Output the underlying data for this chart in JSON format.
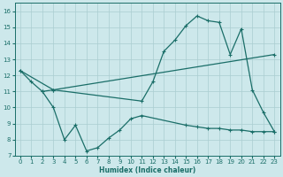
{
  "xlabel": "Humidex (Indice chaleur)",
  "xlim": [
    -0.5,
    23.5
  ],
  "ylim": [
    7,
    16.5
  ],
  "yticks": [
    7,
    8,
    9,
    10,
    11,
    12,
    13,
    14,
    15,
    16
  ],
  "xticks": [
    0,
    1,
    2,
    3,
    4,
    5,
    6,
    7,
    8,
    9,
    10,
    11,
    12,
    13,
    14,
    15,
    16,
    17,
    18,
    19,
    20,
    21,
    22,
    23
  ],
  "bg_color": "#cde8eb",
  "grid_color": "#aacdd1",
  "line_color": "#1a6e68",
  "curve_peak_x": [
    0,
    1,
    2,
    3,
    11,
    12,
    13,
    14,
    15,
    16,
    17,
    18,
    19,
    20,
    21,
    22,
    23
  ],
  "curve_peak_y": [
    12.3,
    11.6,
    11.0,
    11.1,
    10.4,
    11.6,
    13.5,
    14.2,
    15.1,
    15.7,
    15.4,
    15.3,
    13.3,
    14.9,
    11.1,
    9.7,
    8.5
  ],
  "curve_dip_x": [
    2,
    3,
    4,
    5,
    6,
    7,
    8,
    9,
    10,
    11,
    15,
    16,
    17,
    18,
    19,
    20,
    21,
    22,
    23
  ],
  "curve_dip_y": [
    11.0,
    10.0,
    8.0,
    8.9,
    7.3,
    7.5,
    8.1,
    8.6,
    9.3,
    9.5,
    8.9,
    8.8,
    8.7,
    8.7,
    8.6,
    8.6,
    8.5,
    8.5,
    8.5
  ],
  "curve_line_x": [
    0,
    3,
    23
  ],
  "curve_line_y": [
    12.3,
    11.1,
    13.3
  ]
}
